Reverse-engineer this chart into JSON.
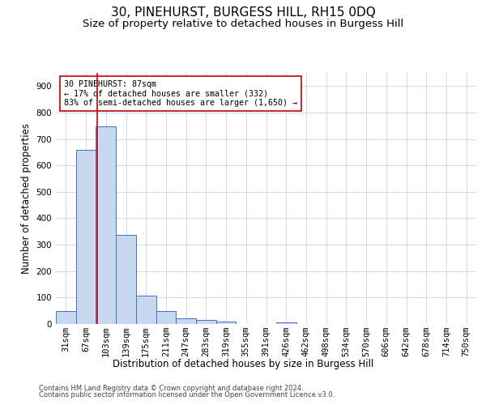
{
  "title": "30, PINEHURST, BURGESS HILL, RH15 0DQ",
  "subtitle": "Size of property relative to detached houses in Burgess Hill",
  "xlabel": "Distribution of detached houses by size in Burgess Hill",
  "ylabel": "Number of detached properties",
  "footnote1": "Contains HM Land Registry data © Crown copyright and database right 2024.",
  "footnote2": "Contains public sector information licensed under the Open Government Licence v3.0.",
  "bin_labels": [
    "31sqm",
    "67sqm",
    "103sqm",
    "139sqm",
    "175sqm",
    "211sqm",
    "247sqm",
    "283sqm",
    "319sqm",
    "355sqm",
    "391sqm",
    "426sqm",
    "462sqm",
    "498sqm",
    "534sqm",
    "570sqm",
    "606sqm",
    "642sqm",
    "678sqm",
    "714sqm",
    "750sqm"
  ],
  "bar_values": [
    48,
    660,
    748,
    338,
    108,
    48,
    22,
    14,
    10,
    0,
    0,
    5,
    0,
    0,
    0,
    0,
    0,
    0,
    0,
    0,
    0
  ],
  "bar_color": "#c6d9f0",
  "bar_edge_color": "#4472c4",
  "property_line_color": "#cc0000",
  "annotation_text": "30 PINEHURST: 87sqm\n← 17% of detached houses are smaller (332)\n83% of semi-detached houses are larger (1,650) →",
  "annotation_box_color": "#ffffff",
  "annotation_box_edge_color": "#cc0000",
  "ylim": [
    0,
    950
  ],
  "yticks": [
    0,
    100,
    200,
    300,
    400,
    500,
    600,
    700,
    800,
    900
  ],
  "grid_color": "#cdd8ea",
  "background_color": "#ffffff",
  "title_fontsize": 11,
  "subtitle_fontsize": 9.5,
  "axis_label_fontsize": 8.5,
  "tick_fontsize": 7.5,
  "footnote_fontsize": 6
}
